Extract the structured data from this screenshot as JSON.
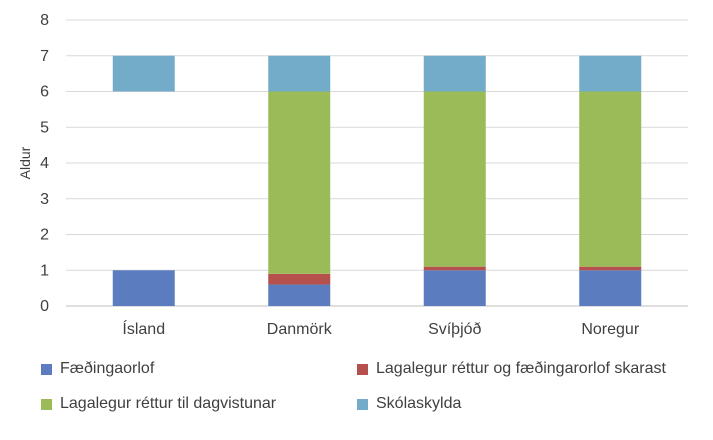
{
  "chart_data": {
    "type": "bar",
    "stacked": "floating",
    "title": "",
    "xlabel": "",
    "ylabel": "Aldur",
    "ylim": [
      0,
      8
    ],
    "yticks": [
      0,
      1,
      2,
      3,
      4,
      5,
      6,
      7,
      8
    ],
    "grid": true,
    "categories": [
      "Ísland",
      "Danmörk",
      "Svíþjóð",
      "Noregur"
    ],
    "series": [
      {
        "name": "Fæðingaorlof",
        "color": "#5B7DBF",
        "ranges": [
          [
            0,
            1
          ],
          [
            0,
            0.6
          ],
          [
            0,
            1
          ],
          [
            0,
            1
          ]
        ]
      },
      {
        "name": "Lagalegur réttur og fæðingarorlof skarast",
        "color": "#B5504C",
        "ranges": [
          [
            0,
            0
          ],
          [
            0.6,
            0.9
          ],
          [
            1,
            1.1
          ],
          [
            1,
            1.1
          ]
        ]
      },
      {
        "name": "Lagalegur réttur til dagvistunar",
        "color": "#9BBB59",
        "ranges": [
          [
            0,
            0
          ],
          [
            0.9,
            6
          ],
          [
            1.1,
            6
          ],
          [
            1.1,
            6
          ]
        ]
      },
      {
        "name": "Skólaskylda",
        "color": "#72ACC8",
        "ranges": [
          [
            6,
            7
          ],
          [
            6,
            7
          ],
          [
            6,
            7
          ],
          [
            6,
            7
          ]
        ]
      }
    ],
    "legend_position": "bottom"
  }
}
